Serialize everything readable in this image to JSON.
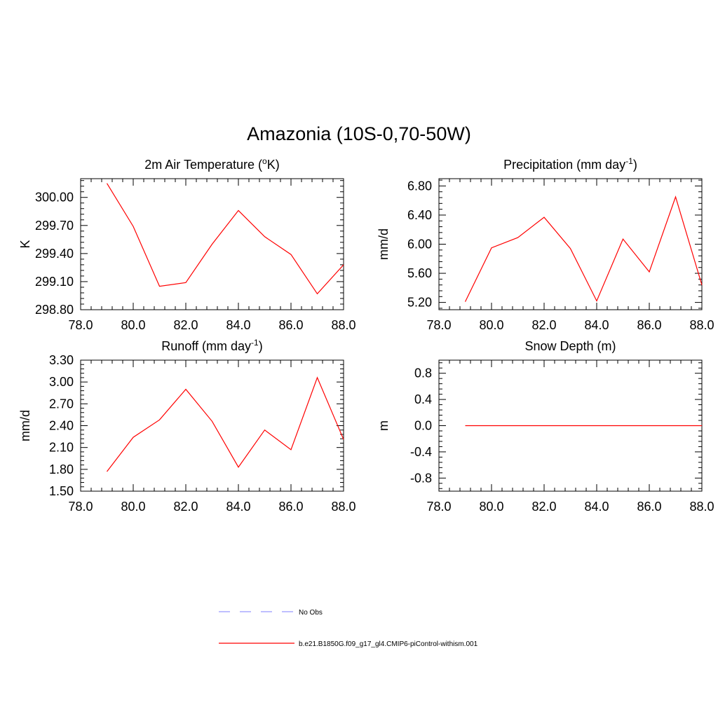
{
  "figure_title": "Amazonia (10S-0,70-50W)",
  "legend": [
    {
      "label": "No Obs",
      "color": "#9999ff",
      "dashed": true
    },
    {
      "label": "b.e21.B1850G.f09_g17_gl4.CMIP6-piControl-withism.001",
      "color": "#ff0000",
      "dashed": false
    }
  ],
  "chart_data": [
    {
      "type": "line",
      "title": "2m Air Temperature (",
      "title_sup": "o",
      "title_after": "K)",
      "ylabel": "K",
      "xlim": [
        78,
        88
      ],
      "ylim": [
        298.8,
        300.2
      ],
      "xticks": [
        "78.0",
        "80.0",
        "82.0",
        "84.0",
        "86.0",
        "88.0"
      ],
      "yticks": [
        "298.80",
        "299.10",
        "299.40",
        "299.70",
        "300.00"
      ],
      "series": [
        {
          "color": "#ff0000",
          "x": [
            79,
            80,
            81,
            82,
            83,
            84,
            85,
            86,
            87,
            88
          ],
          "values": [
            300.15,
            299.69,
            299.05,
            299.09,
            299.5,
            299.86,
            299.58,
            299.39,
            298.97,
            299.28
          ]
        }
      ]
    },
    {
      "type": "line",
      "title": "Precipitation (mm day",
      "title_sup": "-1",
      "title_after": ")",
      "ylabel": "mm/d",
      "xlim": [
        78,
        88
      ],
      "ylim": [
        5.1,
        6.9
      ],
      "xticks": [
        "78.0",
        "80.0",
        "82.0",
        "84.0",
        "86.0",
        "88.0"
      ],
      "yticks": [
        "5.20",
        "5.60",
        "6.00",
        "6.40",
        "6.80"
      ],
      "series": [
        {
          "color": "#ff0000",
          "x": [
            79,
            80,
            81,
            82,
            83,
            84,
            85,
            86,
            87,
            88
          ],
          "values": [
            5.21,
            5.95,
            6.09,
            6.37,
            5.94,
            5.22,
            6.07,
            5.62,
            6.65,
            5.44
          ]
        }
      ]
    },
    {
      "type": "line",
      "title": "Runoff (mm day",
      "title_sup": "-1",
      "title_after": ")",
      "ylabel": "mm/d",
      "xlim": [
        78,
        88
      ],
      "ylim": [
        1.5,
        3.3
      ],
      "xticks": [
        "78.0",
        "80.0",
        "82.0",
        "84.0",
        "86.0",
        "88.0"
      ],
      "yticks": [
        "1.50",
        "1.80",
        "2.10",
        "2.40",
        "2.70",
        "3.00",
        "3.30"
      ],
      "series": [
        {
          "color": "#ff0000",
          "x": [
            79,
            80,
            81,
            82,
            83,
            84,
            85,
            86,
            87,
            88
          ],
          "values": [
            1.77,
            2.24,
            2.48,
            2.9,
            2.46,
            1.83,
            2.34,
            2.07,
            3.06,
            2.21
          ]
        }
      ]
    },
    {
      "type": "line",
      "title": "Snow Depth (m)",
      "title_sup": "",
      "title_after": "",
      "ylabel": "m",
      "xlim": [
        78,
        88
      ],
      "ylim": [
        -1.0,
        1.0
      ],
      "xticks": [
        "78.0",
        "80.0",
        "82.0",
        "84.0",
        "86.0",
        "88.0"
      ],
      "yticks": [
        "-0.8",
        "-0.4",
        "0.0",
        "0.4",
        "0.8"
      ],
      "series": [
        {
          "color": "#ff0000",
          "x": [
            79,
            80,
            81,
            82,
            83,
            84,
            85,
            86,
            87,
            88
          ],
          "values": [
            0,
            0,
            0,
            0,
            0,
            0,
            0,
            0,
            0,
            0
          ]
        }
      ]
    }
  ]
}
